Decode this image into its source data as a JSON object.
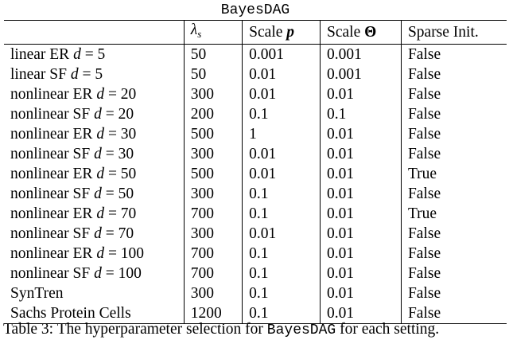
{
  "table": {
    "title": "BayesDAG",
    "headers": {
      "lambda": "λ",
      "lambda_sub": "s",
      "scale_p_prefix": "Scale ",
      "scale_p_symbol": "p",
      "scale_theta_prefix": "Scale ",
      "scale_theta_symbol": "Θ",
      "sparse_init": "Sparse Init."
    },
    "rows": [
      {
        "setting_prefix": "linear ER ",
        "setting_var": "d",
        "setting_eq": " = 5",
        "lambda": "50",
        "p": "0.001",
        "theta": "0.001",
        "sparse": "False"
      },
      {
        "setting_prefix": "linear SF ",
        "setting_var": "d",
        "setting_eq": " = 5",
        "lambda": "50",
        "p": "0.01",
        "theta": "0.001",
        "sparse": "False"
      },
      {
        "setting_prefix": "nonlinear ER ",
        "setting_var": "d",
        "setting_eq": " = 20",
        "lambda": "300",
        "p": "0.01",
        "theta": "0.01",
        "sparse": "False"
      },
      {
        "setting_prefix": "nonlinear SF ",
        "setting_var": "d",
        "setting_eq": " = 20",
        "lambda": "200",
        "p": "0.1",
        "theta": "0.1",
        "sparse": "False"
      },
      {
        "setting_prefix": "nonlinear ER ",
        "setting_var": "d",
        "setting_eq": " = 30",
        "lambda": "500",
        "p": "1",
        "theta": "0.01",
        "sparse": "False"
      },
      {
        "setting_prefix": "nonlinear SF ",
        "setting_var": "d",
        "setting_eq": " = 30",
        "lambda": "300",
        "p": "0.01",
        "theta": "0.01",
        "sparse": "False"
      },
      {
        "setting_prefix": "nonlinear ER ",
        "setting_var": "d",
        "setting_eq": " = 50",
        "lambda": "500",
        "p": "0.01",
        "theta": "0.01",
        "sparse": "True"
      },
      {
        "setting_prefix": "nonlinear SF ",
        "setting_var": "d",
        "setting_eq": " = 50",
        "lambda": "300",
        "p": "0.1",
        "theta": "0.01",
        "sparse": "False"
      },
      {
        "setting_prefix": "nonlinear ER ",
        "setting_var": "d",
        "setting_eq": " = 70",
        "lambda": "700",
        "p": "0.1",
        "theta": "0.01",
        "sparse": "True"
      },
      {
        "setting_prefix": "nonlinear SF ",
        "setting_var": "d",
        "setting_eq": " = 70",
        "lambda": "300",
        "p": "0.01",
        "theta": "0.01",
        "sparse": "False"
      },
      {
        "setting_prefix": "nonlinear ER ",
        "setting_var": "d",
        "setting_eq": " = 100",
        "lambda": "700",
        "p": "0.1",
        "theta": "0.01",
        "sparse": "False"
      },
      {
        "setting_prefix": "nonlinear SF ",
        "setting_var": "d",
        "setting_eq": " = 100",
        "lambda": "700",
        "p": "0.1",
        "theta": "0.01",
        "sparse": "False"
      },
      {
        "setting_prefix": "SynTren",
        "setting_var": "",
        "setting_eq": "",
        "lambda": "300",
        "p": "0.1",
        "theta": "0.01",
        "sparse": "False"
      },
      {
        "setting_prefix": "Sachs Protein Cells",
        "setting_var": "",
        "setting_eq": "",
        "lambda": "1200",
        "p": "0.1",
        "theta": "0.01",
        "sparse": "False"
      }
    ]
  },
  "caption": {
    "prefix": "Table 3: The hyperparameter selection for ",
    "code": "BayesDAG",
    "suffix": " for each setting."
  }
}
